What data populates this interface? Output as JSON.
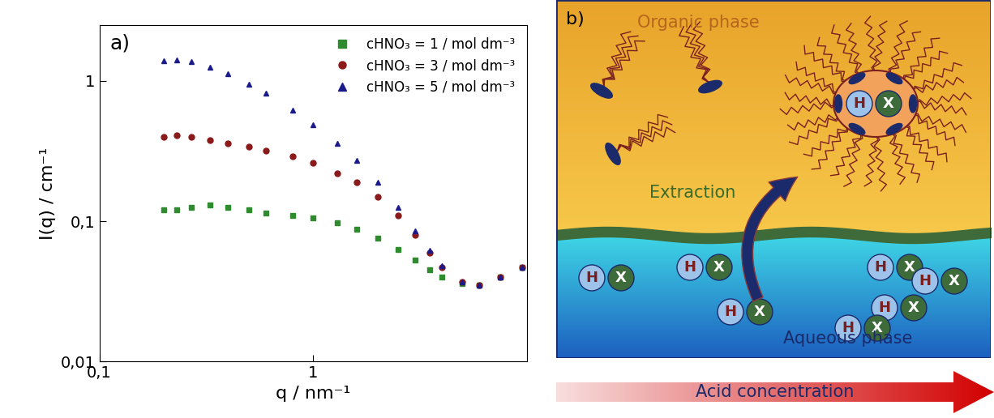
{
  "chart_data": {
    "type": "scatter",
    "panel_label": "a)",
    "x_label": "q / nm⁻¹",
    "y_label": "I(q) / cm⁻¹",
    "log": true,
    "legend": "upper right",
    "xlim": [
      0.1,
      10
    ],
    "ylim": [
      0.01,
      2.5
    ],
    "xticks": [
      {
        "value": 0.1,
        "label": "0,1"
      },
      1
    ],
    "yticks": [
      {
        "value": 0.01,
        "label": "0,01"
      },
      {
        "value": 0.1,
        "label": "0,1"
      },
      1
    ],
    "x": [
      0.2,
      0.23,
      0.27,
      0.33,
      0.4,
      0.5,
      0.6,
      0.8,
      1.0,
      1.3,
      1.6,
      2.0,
      2.5,
      3.0,
      3.5,
      4.0,
      5.0,
      6.0,
      7.5,
      9.5
    ],
    "series": [
      {
        "name": "cHNO₃ = 1 / mol dm⁻³",
        "color": "#2e8b2e",
        "marker": "square",
        "line_style": "none",
        "values": [
          0.12,
          0.12,
          0.125,
          0.13,
          0.125,
          0.12,
          0.115,
          0.11,
          0.105,
          0.097,
          0.088,
          0.076,
          0.063,
          0.053,
          0.045,
          0.04,
          0.036,
          0.035,
          0.04,
          0.047
        ]
      },
      {
        "name": "cHNO₃ = 3 / mol dm⁻³",
        "color": "#8b1a1a",
        "marker": "circle",
        "line_style": "none",
        "values": [
          0.4,
          0.41,
          0.4,
          0.38,
          0.36,
          0.34,
          0.32,
          0.29,
          0.26,
          0.22,
          0.19,
          0.15,
          0.11,
          0.08,
          0.06,
          0.047,
          0.037,
          0.035,
          0.04,
          0.047
        ]
      },
      {
        "name": "cHNO₃ = 5 / mol dm⁻³",
        "color": "#1a1a8b",
        "marker": "triangle",
        "line_style": "none",
        "values": [
          1.4,
          1.42,
          1.38,
          1.25,
          1.12,
          0.95,
          0.82,
          0.62,
          0.49,
          0.36,
          0.27,
          0.19,
          0.125,
          0.085,
          0.062,
          0.048,
          0.037,
          0.035,
          0.04,
          0.047
        ]
      }
    ]
  },
  "diagram": {
    "panel_label": "b)",
    "organic_label": "Organic phase",
    "interface_label": "Extraction",
    "aqueous_label": "Aqueous phase",
    "acid": "H",
    "anion": "X",
    "arrow_label": "Acid concentration"
  }
}
